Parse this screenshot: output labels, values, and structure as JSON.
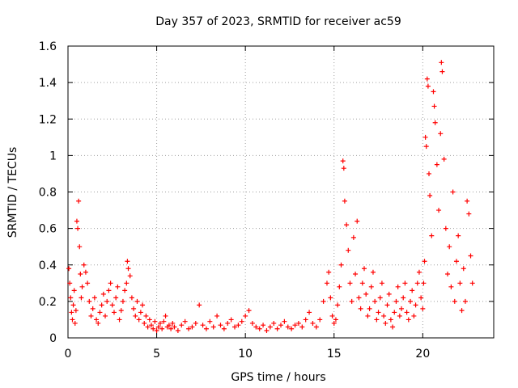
{
  "chart_data": {
    "type": "scatter",
    "title": "Day 357 of 2023, SRMTID for receiver ac59",
    "xlabel": "GPS time / hours",
    "ylabel": "SRMTID / TECUs",
    "xlim": [
      0,
      24
    ],
    "ylim": [
      0,
      1.6
    ],
    "x_ticks": [
      0,
      5,
      10,
      15,
      20
    ],
    "x_tick_labels": [
      "0",
      "5",
      "10",
      "15",
      "20"
    ],
    "y_ticks": [
      0,
      0.2,
      0.4,
      0.6,
      0.8,
      1.0,
      1.2,
      1.4,
      1.6
    ],
    "y_tick_labels": [
      "0",
      "0.2",
      "0.4",
      "0.6",
      "0.8",
      "1",
      "1.2",
      "1.4",
      "1.6"
    ],
    "grid": true,
    "marker": "+",
    "series": [
      {
        "name": "SRMTID",
        "color": "#ff0000",
        "points": [
          [
            0.05,
            0.38
          ],
          [
            0.1,
            0.3
          ],
          [
            0.15,
            0.22
          ],
          [
            0.2,
            0.14
          ],
          [
            0.25,
            0.1
          ],
          [
            0.3,
            0.18
          ],
          [
            0.35,
            0.26
          ],
          [
            0.4,
            0.08
          ],
          [
            0.45,
            0.15
          ],
          [
            0.5,
            0.64
          ],
          [
            0.55,
            0.6
          ],
          [
            0.6,
            0.75
          ],
          [
            0.65,
            0.5
          ],
          [
            0.7,
            0.35
          ],
          [
            0.75,
            0.22
          ],
          [
            0.8,
            0.28
          ],
          [
            0.9,
            0.4
          ],
          [
            1.0,
            0.36
          ],
          [
            1.1,
            0.3
          ],
          [
            1.2,
            0.2
          ],
          [
            1.3,
            0.12
          ],
          [
            1.4,
            0.16
          ],
          [
            1.5,
            0.22
          ],
          [
            1.6,
            0.1
          ],
          [
            1.7,
            0.08
          ],
          [
            1.8,
            0.14
          ],
          [
            1.9,
            0.18
          ],
          [
            2.0,
            0.24
          ],
          [
            2.1,
            0.12
          ],
          [
            2.2,
            0.2
          ],
          [
            2.3,
            0.26
          ],
          [
            2.4,
            0.3
          ],
          [
            2.5,
            0.18
          ],
          [
            2.6,
            0.14
          ],
          [
            2.7,
            0.22
          ],
          [
            2.8,
            0.28
          ],
          [
            2.9,
            0.1
          ],
          [
            3.0,
            0.15
          ],
          [
            3.1,
            0.2
          ],
          [
            3.2,
            0.26
          ],
          [
            3.3,
            0.3
          ],
          [
            3.35,
            0.42
          ],
          [
            3.4,
            0.38
          ],
          [
            3.5,
            0.34
          ],
          [
            3.6,
            0.22
          ],
          [
            3.7,
            0.16
          ],
          [
            3.8,
            0.12
          ],
          [
            3.9,
            0.2
          ],
          [
            4.0,
            0.1
          ],
          [
            4.1,
            0.14
          ],
          [
            4.2,
            0.18
          ],
          [
            4.3,
            0.08
          ],
          [
            4.4,
            0.12
          ],
          [
            4.5,
            0.06
          ],
          [
            4.6,
            0.1
          ],
          [
            4.7,
            0.07
          ],
          [
            4.8,
            0.05
          ],
          [
            4.9,
            0.09
          ],
          [
            5.0,
            0.04
          ],
          [
            5.1,
            0.06
          ],
          [
            5.2,
            0.08
          ],
          [
            5.3,
            0.05
          ],
          [
            5.4,
            0.09
          ],
          [
            5.5,
            0.12
          ],
          [
            5.6,
            0.06
          ],
          [
            5.7,
            0.07
          ],
          [
            5.8,
            0.05
          ],
          [
            5.9,
            0.08
          ],
          [
            6.0,
            0.06
          ],
          [
            6.2,
            0.04
          ],
          [
            6.4,
            0.07
          ],
          [
            6.6,
            0.09
          ],
          [
            6.8,
            0.05
          ],
          [
            7.0,
            0.06
          ],
          [
            7.2,
            0.08
          ],
          [
            7.4,
            0.18
          ],
          [
            7.6,
            0.07
          ],
          [
            7.8,
            0.05
          ],
          [
            8.0,
            0.09
          ],
          [
            8.2,
            0.06
          ],
          [
            8.4,
            0.12
          ],
          [
            8.6,
            0.07
          ],
          [
            8.8,
            0.05
          ],
          [
            9.0,
            0.08
          ],
          [
            9.2,
            0.1
          ],
          [
            9.4,
            0.06
          ],
          [
            9.6,
            0.07
          ],
          [
            9.8,
            0.09
          ],
          [
            10.0,
            0.12
          ],
          [
            10.2,
            0.15
          ],
          [
            10.4,
            0.08
          ],
          [
            10.6,
            0.06
          ],
          [
            10.8,
            0.05
          ],
          [
            11.0,
            0.07
          ],
          [
            11.2,
            0.04
          ],
          [
            11.4,
            0.06
          ],
          [
            11.6,
            0.08
          ],
          [
            11.8,
            0.05
          ],
          [
            12.0,
            0.07
          ],
          [
            12.2,
            0.09
          ],
          [
            12.4,
            0.06
          ],
          [
            12.6,
            0.05
          ],
          [
            12.8,
            0.07
          ],
          [
            13.0,
            0.08
          ],
          [
            13.2,
            0.06
          ],
          [
            13.4,
            0.1
          ],
          [
            13.6,
            0.14
          ],
          [
            13.8,
            0.08
          ],
          [
            14.0,
            0.06
          ],
          [
            14.2,
            0.1
          ],
          [
            14.4,
            0.2
          ],
          [
            14.6,
            0.3
          ],
          [
            14.7,
            0.36
          ],
          [
            14.8,
            0.22
          ],
          [
            14.9,
            0.12
          ],
          [
            15.0,
            0.08
          ],
          [
            15.1,
            0.1
          ],
          [
            15.2,
            0.18
          ],
          [
            15.3,
            0.28
          ],
          [
            15.4,
            0.4
          ],
          [
            15.5,
            0.97
          ],
          [
            15.55,
            0.93
          ],
          [
            15.6,
            0.75
          ],
          [
            15.7,
            0.62
          ],
          [
            15.8,
            0.48
          ],
          [
            15.9,
            0.3
          ],
          [
            16.0,
            0.2
          ],
          [
            16.1,
            0.55
          ],
          [
            16.2,
            0.35
          ],
          [
            16.3,
            0.64
          ],
          [
            16.4,
            0.22
          ],
          [
            16.5,
            0.16
          ],
          [
            16.6,
            0.3
          ],
          [
            16.7,
            0.38
          ],
          [
            16.8,
            0.24
          ],
          [
            16.9,
            0.12
          ],
          [
            17.0,
            0.16
          ],
          [
            17.1,
            0.28
          ],
          [
            17.2,
            0.36
          ],
          [
            17.3,
            0.2
          ],
          [
            17.4,
            0.1
          ],
          [
            17.5,
            0.14
          ],
          [
            17.6,
            0.22
          ],
          [
            17.7,
            0.3
          ],
          [
            17.8,
            0.12
          ],
          [
            17.9,
            0.08
          ],
          [
            18.0,
            0.18
          ],
          [
            18.1,
            0.24
          ],
          [
            18.2,
            0.1
          ],
          [
            18.3,
            0.06
          ],
          [
            18.4,
            0.14
          ],
          [
            18.5,
            0.2
          ],
          [
            18.6,
            0.28
          ],
          [
            18.7,
            0.12
          ],
          [
            18.8,
            0.16
          ],
          [
            18.9,
            0.22
          ],
          [
            19.0,
            0.3
          ],
          [
            19.1,
            0.14
          ],
          [
            19.2,
            0.1
          ],
          [
            19.3,
            0.2
          ],
          [
            19.4,
            0.26
          ],
          [
            19.5,
            0.12
          ],
          [
            19.6,
            0.18
          ],
          [
            19.7,
            0.3
          ],
          [
            19.8,
            0.36
          ],
          [
            19.9,
            0.22
          ],
          [
            20.0,
            0.16
          ],
          [
            20.05,
            0.3
          ],
          [
            20.1,
            0.42
          ],
          [
            20.15,
            1.1
          ],
          [
            20.2,
            1.05
          ],
          [
            20.25,
            1.42
          ],
          [
            20.3,
            1.38
          ],
          [
            20.35,
            0.9
          ],
          [
            20.4,
            0.78
          ],
          [
            20.5,
            0.56
          ],
          [
            20.6,
            1.35
          ],
          [
            20.65,
            1.27
          ],
          [
            20.7,
            1.18
          ],
          [
            20.8,
            0.95
          ],
          [
            20.9,
            0.7
          ],
          [
            21.0,
            1.12
          ],
          [
            21.05,
            1.51
          ],
          [
            21.1,
            1.46
          ],
          [
            21.2,
            0.98
          ],
          [
            21.3,
            0.6
          ],
          [
            21.4,
            0.35
          ],
          [
            21.5,
            0.5
          ],
          [
            21.6,
            0.28
          ],
          [
            21.7,
            0.8
          ],
          [
            21.8,
            0.2
          ],
          [
            21.9,
            0.42
          ],
          [
            22.0,
            0.56
          ],
          [
            22.1,
            0.3
          ],
          [
            22.2,
            0.15
          ],
          [
            22.3,
            0.38
          ],
          [
            22.4,
            0.2
          ],
          [
            22.5,
            0.75
          ],
          [
            22.6,
            0.68
          ],
          [
            22.7,
            0.45
          ],
          [
            22.8,
            0.3
          ]
        ]
      }
    ]
  }
}
